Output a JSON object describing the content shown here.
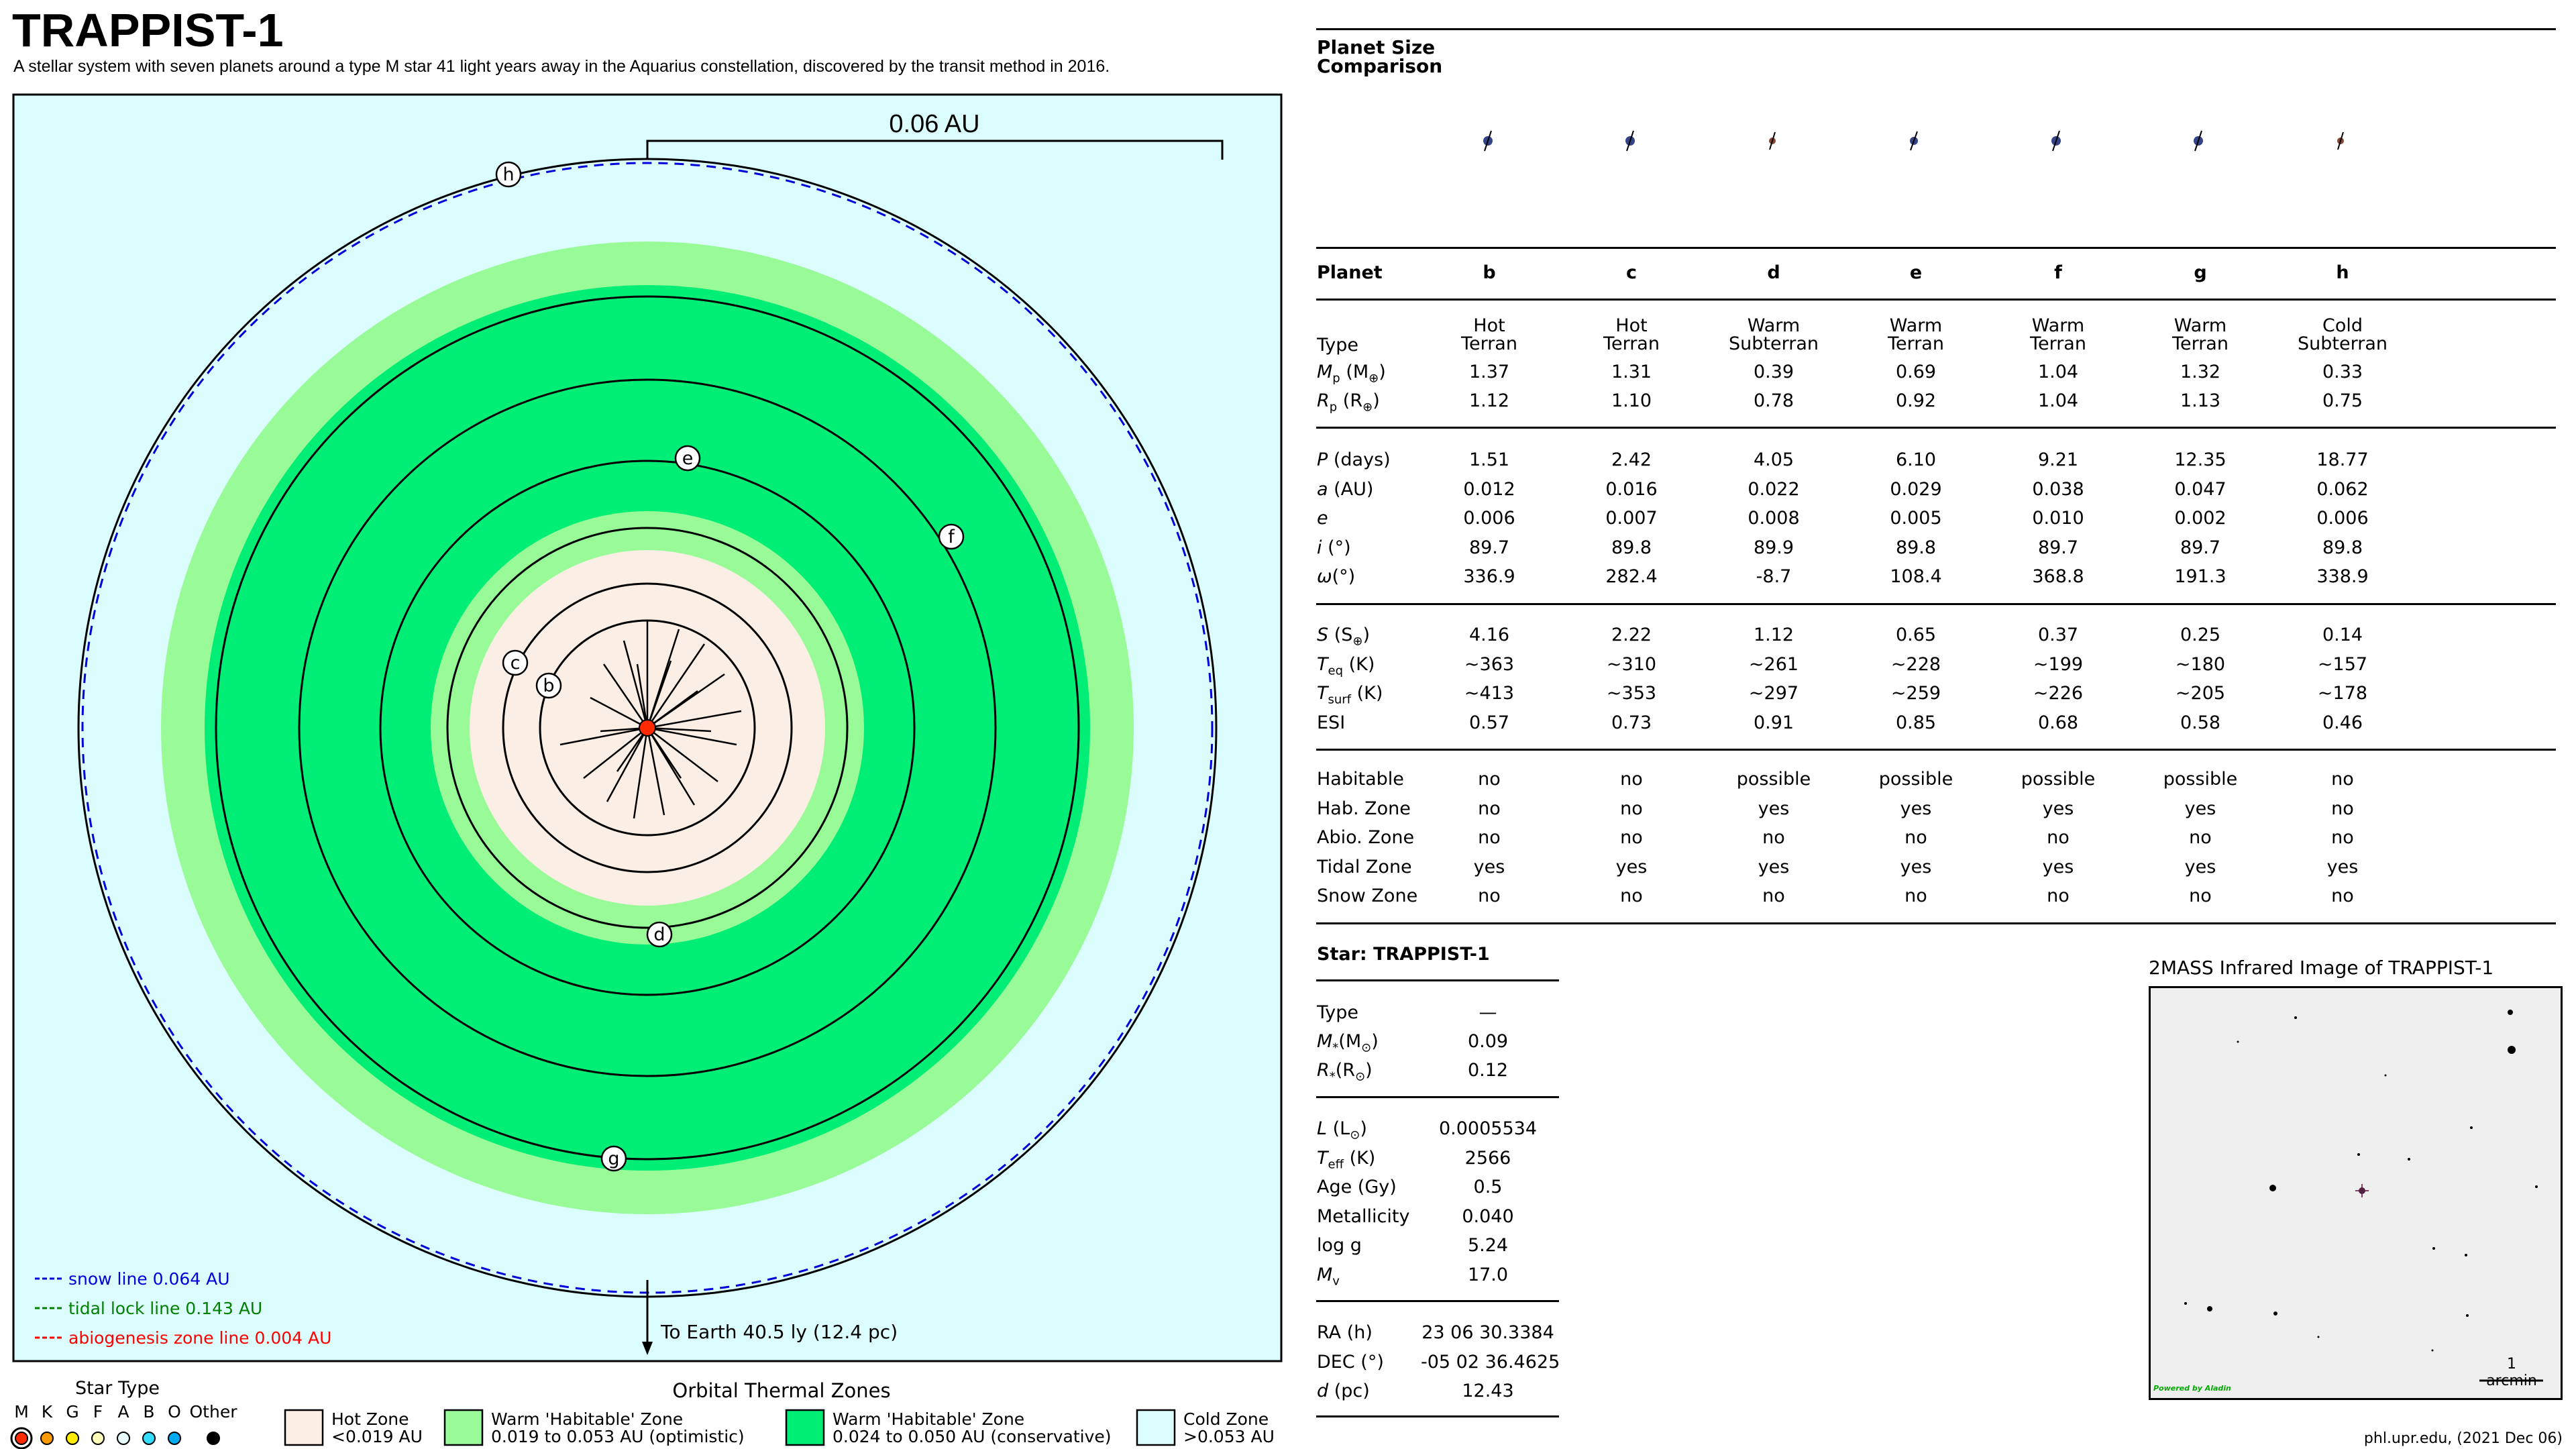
{
  "header": {
    "title": "TRAPPIST-1",
    "subtitle": "A stellar system with seven planets around a type M star 41 light years away in the Aquarius constellation, discovered by the transit method in 2016."
  },
  "orbit_diagram": {
    "scale_label": "0.06 AU",
    "earth_label": "To Earth 40.5 ly (12.4 pc)",
    "planet_markers": [
      "b",
      "c",
      "d",
      "e",
      "f",
      "g",
      "h"
    ],
    "legend_lines": [
      {
        "text": "snow line 0.064 AU",
        "color": "#0000ff"
      },
      {
        "text": "tidal lock line 0.143 AU",
        "color": "#008000"
      },
      {
        "text": "abiogenesis zone line 0.004 AU",
        "color": "#ff0000"
      }
    ],
    "colors": {
      "cold_zone": "#dcfdfd",
      "warm_optimistic": "#98fb98",
      "warm_conservative": "#00ee76",
      "hot_zone": "#fbeee5",
      "star": "#ff2a00",
      "snow_line": "#0000dd"
    }
  },
  "star_type_legend": {
    "title": "Star Type",
    "types": [
      {
        "label": "M",
        "color": "#ff2a00"
      },
      {
        "label": "K",
        "color": "#ff9a00"
      },
      {
        "label": "G",
        "color": "#ffee00"
      },
      {
        "label": "F",
        "color": "#ffffbb"
      },
      {
        "label": "A",
        "color": "#e8ffff"
      },
      {
        "label": "B",
        "color": "#33ddff"
      },
      {
        "label": "O",
        "color": "#00aaee"
      },
      {
        "label": "Other",
        "color": "#000000"
      }
    ]
  },
  "zone_legend": {
    "title": "Orbital Thermal Zones",
    "items": [
      {
        "name": "Hot Zone",
        "range": "<0.019 AU",
        "color": "#fbeee5"
      },
      {
        "name": "Warm 'Habitable' Zone",
        "range": "0.019 to 0.053 AU (optimistic)",
        "color": "#98fb98"
      },
      {
        "name": "Warm 'Habitable' Zone",
        "range": "0.024 to 0.050 AU (conservative)",
        "color": "#00ee76"
      },
      {
        "name": "Cold Zone",
        "range": ">0.053 AU",
        "color": "#dcfdfd"
      }
    ]
  },
  "size_comparison": {
    "title_line1": "Planet Size",
    "title_line2": "Comparison",
    "planet_colors": [
      "#334488",
      "#334488",
      "#884433",
      "#334488",
      "#334488",
      "#334488",
      "#884433"
    ]
  },
  "planet_table": {
    "header_label": "Planet",
    "planets": [
      "b",
      "c",
      "d",
      "e",
      "f",
      "g",
      "h"
    ],
    "type_label": "Type",
    "types": [
      [
        "Hot",
        "Terran"
      ],
      [
        "Hot",
        "Terran"
      ],
      [
        "Warm",
        "Subterran"
      ],
      [
        "Warm",
        "Terran"
      ],
      [
        "Warm",
        "Terran"
      ],
      [
        "Warm",
        "Terran"
      ],
      [
        "Cold",
        "Subterran"
      ]
    ],
    "rows_group1": [
      {
        "label": "Mp (M⊕)",
        "values": [
          "1.37",
          "1.31",
          "0.39",
          "0.69",
          "1.04",
          "1.32",
          "0.33"
        ]
      },
      {
        "label": "Rp (R⊕)",
        "values": [
          "1.12",
          "1.10",
          "0.78",
          "0.92",
          "1.04",
          "1.13",
          "0.75"
        ]
      }
    ],
    "rows_group2": [
      {
        "label": "P (days)",
        "values": [
          "1.51",
          "2.42",
          "4.05",
          "6.10",
          "9.21",
          "12.35",
          "18.77"
        ]
      },
      {
        "label": "a (AU)",
        "values": [
          "0.012",
          "0.016",
          "0.022",
          "0.029",
          "0.038",
          "0.047",
          "0.062"
        ]
      },
      {
        "label": "e",
        "values": [
          "0.006",
          "0.007",
          "0.008",
          "0.005",
          "0.010",
          "0.002",
          "0.006"
        ]
      },
      {
        "label": "i (°)",
        "values": [
          "89.7",
          "89.8",
          "89.9",
          "89.8",
          "89.7",
          "89.7",
          "89.8"
        ]
      },
      {
        "label": "ω(°)",
        "values": [
          "336.9",
          "282.4",
          "-8.7",
          "108.4",
          "368.8",
          "191.3",
          "338.9"
        ]
      }
    ],
    "rows_group3": [
      {
        "label": "S (S⊕)",
        "values": [
          "4.16",
          "2.22",
          "1.12",
          "0.65",
          "0.37",
          "0.25",
          "0.14"
        ]
      },
      {
        "label": "Teq (K)",
        "values": [
          "~363",
          "~310",
          "~261",
          "~228",
          "~199",
          "~180",
          "~157"
        ]
      },
      {
        "label": "Tsurf (K)",
        "values": [
          "~413",
          "~353",
          "~297",
          "~259",
          "~226",
          "~205",
          "~178"
        ]
      },
      {
        "label": "ESI",
        "values": [
          "0.57",
          "0.73",
          "0.91",
          "0.85",
          "0.68",
          "0.58",
          "0.46"
        ]
      }
    ],
    "rows_group4": [
      {
        "label": "Habitable",
        "values": [
          "no",
          "no",
          "possible",
          "possible",
          "possible",
          "possible",
          "no"
        ]
      },
      {
        "label": "Hab. Zone",
        "values": [
          "no",
          "no",
          "yes",
          "yes",
          "yes",
          "yes",
          "no"
        ]
      },
      {
        "label": "Abio. Zone",
        "values": [
          "no",
          "no",
          "no",
          "no",
          "no",
          "no",
          "no"
        ]
      },
      {
        "label": "Tidal Zone",
        "values": [
          "yes",
          "yes",
          "yes",
          "yes",
          "yes",
          "yes",
          "yes"
        ]
      },
      {
        "label": "Snow Zone",
        "values": [
          "no",
          "no",
          "no",
          "no",
          "no",
          "no",
          "no"
        ]
      }
    ]
  },
  "star_table": {
    "title": "Star: TRAPPIST-1",
    "group1": [
      {
        "label": "Type",
        "value": "—"
      },
      {
        "label": "M*(M⊙)",
        "value": "0.09"
      },
      {
        "label": "R*(R⊙)",
        "value": "0.12"
      }
    ],
    "group2": [
      {
        "label": "L (L⊙)",
        "value": "0.0005534"
      },
      {
        "label": "Teff (K)",
        "value": "2566"
      },
      {
        "label": "Age (Gy)",
        "value": "0.5"
      },
      {
        "label": "Metallicity",
        "value": "0.040"
      },
      {
        "label": "log g",
        "value": "5.24"
      },
      {
        "label": "Mv",
        "value": "17.0"
      }
    ],
    "group3": [
      {
        "label": "RA (h)",
        "value": "23 06 30.3384"
      },
      {
        "label": "DEC (°)",
        "value": "-05 02 36.4625"
      },
      {
        "label": "d (pc)",
        "value": "12.43"
      }
    ]
  },
  "infrared_image": {
    "title": "2MASS Infrared Image of TRAPPIST-1",
    "scale_label": "1 arcmin",
    "powered_label": "Powered by Aladin"
  },
  "footer": {
    "credit": "phl.upr.edu, (2021 Dec 06)"
  }
}
